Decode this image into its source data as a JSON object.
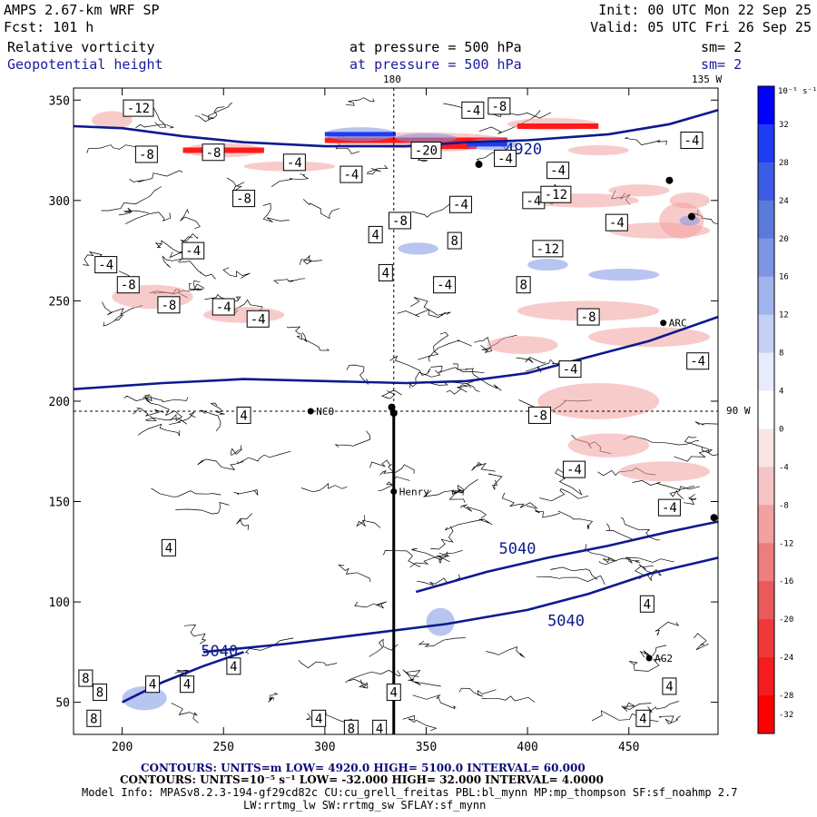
{
  "header": {
    "model": "AMPS 2.67-km WRF SP",
    "forecast": "Fcst: 101 h",
    "init": "Init: 00 UTC Mon 22 Sep 25",
    "valid": "Valid: 05 UTC Fri 26 Sep 25",
    "field1": "Relative vorticity",
    "field2": "Geopotential height",
    "pressure1": "at pressure = 500 hPa",
    "pressure2": "at pressure = 500 hPa",
    "sm1": "sm= 2",
    "sm2": "sm= 2"
  },
  "map_labels": {
    "lon_180": "180",
    "lon_135w": "135 W",
    "lon_90w": "90 W",
    "stations": [
      "NCO",
      "Henry",
      "ARC",
      "AG2"
    ]
  },
  "colorbar": {
    "unit_label": "10⁻⁵ s⁻¹",
    "ticks": [
      "32",
      "28",
      "24",
      "20",
      "16",
      "12",
      "8",
      "4",
      "0",
      "-4",
      "-8",
      "-12",
      "-16",
      "-20",
      "-24",
      "-28",
      "-32"
    ],
    "colors": [
      "#0000ff",
      "#1e3df2",
      "#3d5ce6",
      "#5c7ad9",
      "#7d96e3",
      "#a0b3ec",
      "#c5d0f4",
      "#e7ebfa",
      "#ffffff",
      "#fae4e4",
      "#f6c4c4",
      "#f2a0a0",
      "#ee7d7d",
      "#ea5a5a",
      "#f03a3a",
      "#f51d1d",
      "#ff0000"
    ]
  },
  "chart_data": {
    "type": "heatmap",
    "title": "Relative vorticity / Geopotential height at pressure = 500 hPa",
    "x_ticks": [
      200,
      250,
      300,
      350,
      400,
      450
    ],
    "y_ticks": [
      50,
      100,
      150,
      200,
      250,
      300,
      350
    ],
    "xlim": [
      176,
      494
    ],
    "ylim": [
      34,
      356
    ],
    "height_contours": [
      {
        "label": "4920",
        "points": [
          [
            176,
            337
          ],
          [
            200,
            336
          ],
          [
            230,
            332
          ],
          [
            260,
            329
          ],
          [
            300,
            327
          ],
          [
            340,
            327
          ],
          [
            370,
            329
          ],
          [
            400,
            330
          ],
          [
            440,
            333
          ],
          [
            470,
            338
          ],
          [
            494,
            345
          ]
        ],
        "label_at": [
          398,
          323
        ]
      },
      {
        "label": "",
        "points": [
          [
            176,
            206
          ],
          [
            220,
            209
          ],
          [
            260,
            211
          ],
          [
            300,
            210
          ],
          [
            340,
            209
          ],
          [
            370,
            210
          ],
          [
            400,
            214
          ],
          [
            430,
            222
          ],
          [
            460,
            230
          ],
          [
            494,
            242
          ]
        ],
        "label_at": null
      },
      {
        "label": "5040",
        "points": [
          [
            240,
            75
          ],
          [
            280,
            79
          ],
          [
            320,
            84
          ],
          [
            360,
            89
          ],
          [
            400,
            96
          ],
          [
            430,
            104
          ],
          [
            460,
            114
          ],
          [
            494,
            122
          ]
        ],
        "label_at": [
          419,
          88
        ]
      },
      {
        "label": "5040",
        "points": [
          [
            200,
            50
          ],
          [
            220,
            60
          ],
          [
            240,
            68
          ],
          [
            260,
            75
          ]
        ],
        "label_at": [
          248,
          73
        ]
      },
      {
        "label": "5040",
        "points": [
          [
            345,
            105
          ],
          [
            380,
            115
          ],
          [
            410,
            122
          ],
          [
            440,
            128
          ],
          [
            470,
            135
          ],
          [
            494,
            140
          ]
        ],
        "label_at": [
          395,
          124
        ]
      }
    ],
    "vorticity_labels": [
      {
        "v": "-12",
        "x": 208,
        "y": 346
      },
      {
        "v": "-8",
        "x": 212,
        "y": 323
      },
      {
        "v": "-8",
        "x": 245,
        "y": 324
      },
      {
        "v": "-4",
        "x": 285,
        "y": 319
      },
      {
        "v": "-4",
        "x": 313,
        "y": 313
      },
      {
        "v": "-8",
        "x": 260,
        "y": 301
      },
      {
        "v": "-4",
        "x": 373,
        "y": 345
      },
      {
        "v": "-8",
        "x": 386,
        "y": 347
      },
      {
        "v": "-20",
        "x": 350,
        "y": 325
      },
      {
        "v": "-4",
        "x": 367,
        "y": 298
      },
      {
        "v": "-8",
        "x": 337,
        "y": 290
      },
      {
        "v": "-4",
        "x": 403,
        "y": 300
      },
      {
        "v": "-4",
        "x": 389,
        "y": 321
      },
      {
        "v": "-4",
        "x": 415,
        "y": 315
      },
      {
        "v": "-12",
        "x": 414,
        "y": 303
      },
      {
        "v": "-4",
        "x": 444,
        "y": 289
      },
      {
        "v": "-4",
        "x": 481,
        "y": 330
      },
      {
        "v": "-12",
        "x": 410,
        "y": 276
      },
      {
        "v": "8",
        "x": 364,
        "y": 280
      },
      {
        "v": "4",
        "x": 325,
        "y": 283
      },
      {
        "v": "-4",
        "x": 235,
        "y": 275
      },
      {
        "v": "-4",
        "x": 192,
        "y": 268
      },
      {
        "v": "4",
        "x": 330,
        "y": 264
      },
      {
        "v": "-8",
        "x": 203,
        "y": 258
      },
      {
        "v": "-8",
        "x": 223,
        "y": 248
      },
      {
        "v": "-4",
        "x": 250,
        "y": 247
      },
      {
        "v": "-4",
        "x": 267,
        "y": 241
      },
      {
        "v": "-4",
        "x": 359,
        "y": 258
      },
      {
        "v": "8",
        "x": 398,
        "y": 258
      },
      {
        "v": "-8",
        "x": 430,
        "y": 242
      },
      {
        "v": "-4",
        "x": 484,
        "y": 220
      },
      {
        "v": "-4",
        "x": 421,
        "y": 216
      },
      {
        "v": "4",
        "x": 260,
        "y": 193
      },
      {
        "v": "-8",
        "x": 406,
        "y": 193
      },
      {
        "v": "-4",
        "x": 423,
        "y": 166
      },
      {
        "v": "-4",
        "x": 470,
        "y": 147
      },
      {
        "v": "4",
        "x": 223,
        "y": 127
      },
      {
        "v": "4",
        "x": 459,
        "y": 99
      },
      {
        "v": "8",
        "x": 182,
        "y": 62
      },
      {
        "v": "8",
        "x": 189,
        "y": 55
      },
      {
        "v": "8",
        "x": 186,
        "y": 42
      },
      {
        "v": "4",
        "x": 215,
        "y": 59
      },
      {
        "v": "4",
        "x": 232,
        "y": 59
      },
      {
        "v": "4",
        "x": 255,
        "y": 68
      },
      {
        "v": "4",
        "x": 297,
        "y": 42
      },
      {
        "v": "4",
        "x": 327,
        "y": 37
      },
      {
        "v": "4",
        "x": 334,
        "y": 55
      },
      {
        "v": "8",
        "x": 313,
        "y": 37
      },
      {
        "v": "4",
        "x": 470,
        "y": 58
      },
      {
        "v": "4",
        "x": 457,
        "y": 42
      }
    ],
    "red_regions": [
      [
        185,
        340,
        20,
        9
      ],
      [
        230,
        325,
        40,
        7
      ],
      [
        260,
        317,
        45,
        5
      ],
      [
        300,
        330,
        90,
        8
      ],
      [
        345,
        327,
        30,
        5
      ],
      [
        390,
        338,
        45,
        6
      ],
      [
        420,
        325,
        30,
        5
      ],
      [
        400,
        300,
        55,
        7
      ],
      [
        440,
        305,
        30,
        6
      ],
      [
        440,
        285,
        50,
        8
      ],
      [
        465,
        290,
        22,
        18
      ],
      [
        195,
        252,
        40,
        12
      ],
      [
        240,
        243,
        40,
        8
      ],
      [
        395,
        245,
        70,
        10
      ],
      [
        430,
        232,
        60,
        10
      ],
      [
        380,
        228,
        35,
        9
      ],
      [
        405,
        200,
        60,
        18
      ],
      [
        420,
        178,
        40,
        12
      ],
      [
        445,
        165,
        45,
        10
      ],
      [
        470,
        300,
        20,
        8
      ]
    ],
    "blue_regions": [
      [
        300,
        333,
        35,
        7
      ],
      [
        335,
        331,
        30,
        5
      ],
      [
        370,
        328,
        25,
        6
      ],
      [
        336,
        276,
        20,
        6
      ],
      [
        400,
        268,
        20,
        6
      ],
      [
        430,
        263,
        35,
        6
      ],
      [
        350,
        90,
        14,
        14
      ],
      [
        200,
        52,
        22,
        12
      ],
      [
        475,
        290,
        10,
        5
      ]
    ],
    "stations": [
      {
        "name": "NCO",
        "x": 293,
        "y": 195
      },
      {
        "name": "Henry",
        "x": 334,
        "y": 155
      },
      {
        "name": "ARC",
        "x": 467,
        "y": 239
      },
      {
        "name": "AG2",
        "x": 460,
        "y": 72
      }
    ],
    "black_points": [
      [
        333,
        197
      ],
      [
        334,
        194
      ],
      [
        492,
        142
      ],
      [
        481,
        292
      ],
      [
        376,
        318
      ],
      [
        470,
        310
      ]
    ],
    "transect": {
      "x": 334,
      "y_from": 34,
      "y_to": 196
    },
    "crosshair": {
      "x": 334,
      "y": 195
    }
  },
  "footer": {
    "contours_height": "CONTOURS: UNITS=m LOW= 4920.0 HIGH= 5100.0 INTERVAL= 60.000",
    "contours_vort": "CONTOURS: UNITS=10⁻⁵ s⁻¹ LOW= -32.000 HIGH= 32.000 INTERVAL= 4.0000",
    "model_info": "Model Info: MPASv8.2.3-194-gf29cd82c CU:cu_grell_freitas PBL:bl_mynn MP:mp_thompson SF:sf_noahmp 2.7",
    "model_info2": "LW:rrtmg_lw SW:rrtmg_sw SFLAY:sf_mynn"
  }
}
